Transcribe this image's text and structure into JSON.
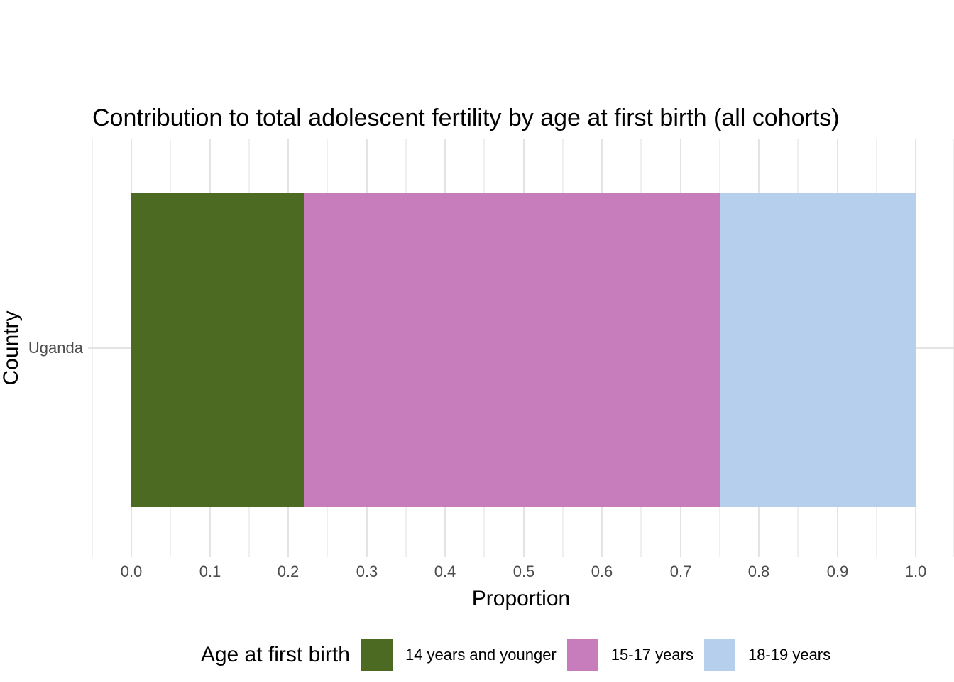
{
  "title": "Contribution to total adolescent fertility by age at first birth (all cohorts)",
  "legend": {
    "title": "Age at first birth",
    "position": "bottom"
  },
  "colors": {
    "background": "#ffffff",
    "grid_major": "#e4e4e4",
    "grid_minor": "#efefef",
    "axis_text": "#4d4d4d",
    "text": "#000000"
  },
  "chart_data": {
    "type": "bar",
    "orientation": "horizontal",
    "stacked": true,
    "title": "Contribution to total adolescent fertility by age at first birth (all cohorts)",
    "xlabel": "Proportion",
    "ylabel": "Country",
    "categories": [
      "Uganda"
    ],
    "series": [
      {
        "name": "14 years and younger",
        "values": [
          0.22
        ],
        "color": "#4c6a22"
      },
      {
        "name": "15-17 years",
        "values": [
          0.53
        ],
        "color": "#c77cbc"
      },
      {
        "name": "18-19 years",
        "values": [
          0.25
        ],
        "color": "#b6cfed"
      }
    ],
    "xlim": [
      0.0,
      1.0
    ],
    "x_ticks": [
      "0.0",
      "0.1",
      "0.2",
      "0.3",
      "0.4",
      "0.5",
      "0.6",
      "0.7",
      "0.8",
      "0.9",
      "1.0"
    ],
    "x_minor_step": 0.05,
    "grid": "vertical major + minor, horizontal major at category",
    "legend_position": "bottom"
  }
}
